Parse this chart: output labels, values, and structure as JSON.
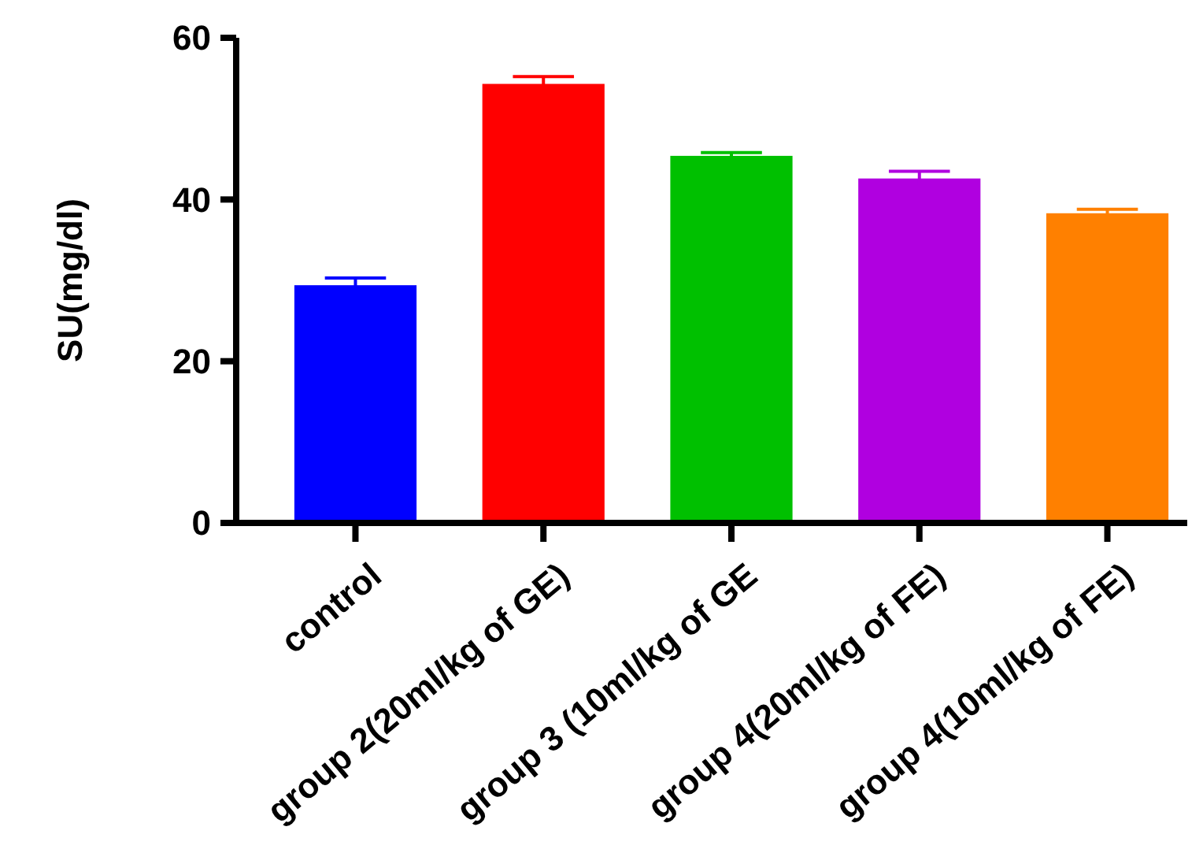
{
  "chart_data": {
    "type": "bar",
    "ylabel": "SU(mg/dl)",
    "categories": [
      "control",
      "group 2(20ml/kg of GE)",
      "group 3 (10ml/kg of GE",
      "group 4(20ml/kg of FE)",
      "group 4(10ml/kg of FE)"
    ],
    "values": [
      29.4,
      54.3,
      45.4,
      42.6,
      38.3
    ],
    "errors": [
      0.9,
      0.9,
      0.4,
      0.9,
      0.5
    ],
    "colors": [
      "#0000ff",
      "#ff0000",
      "#00c000",
      "#b000e0",
      "#ff8000"
    ],
    "ylim": [
      0,
      60
    ],
    "yticks": [
      0,
      20,
      40,
      60
    ],
    "grid": false
  }
}
